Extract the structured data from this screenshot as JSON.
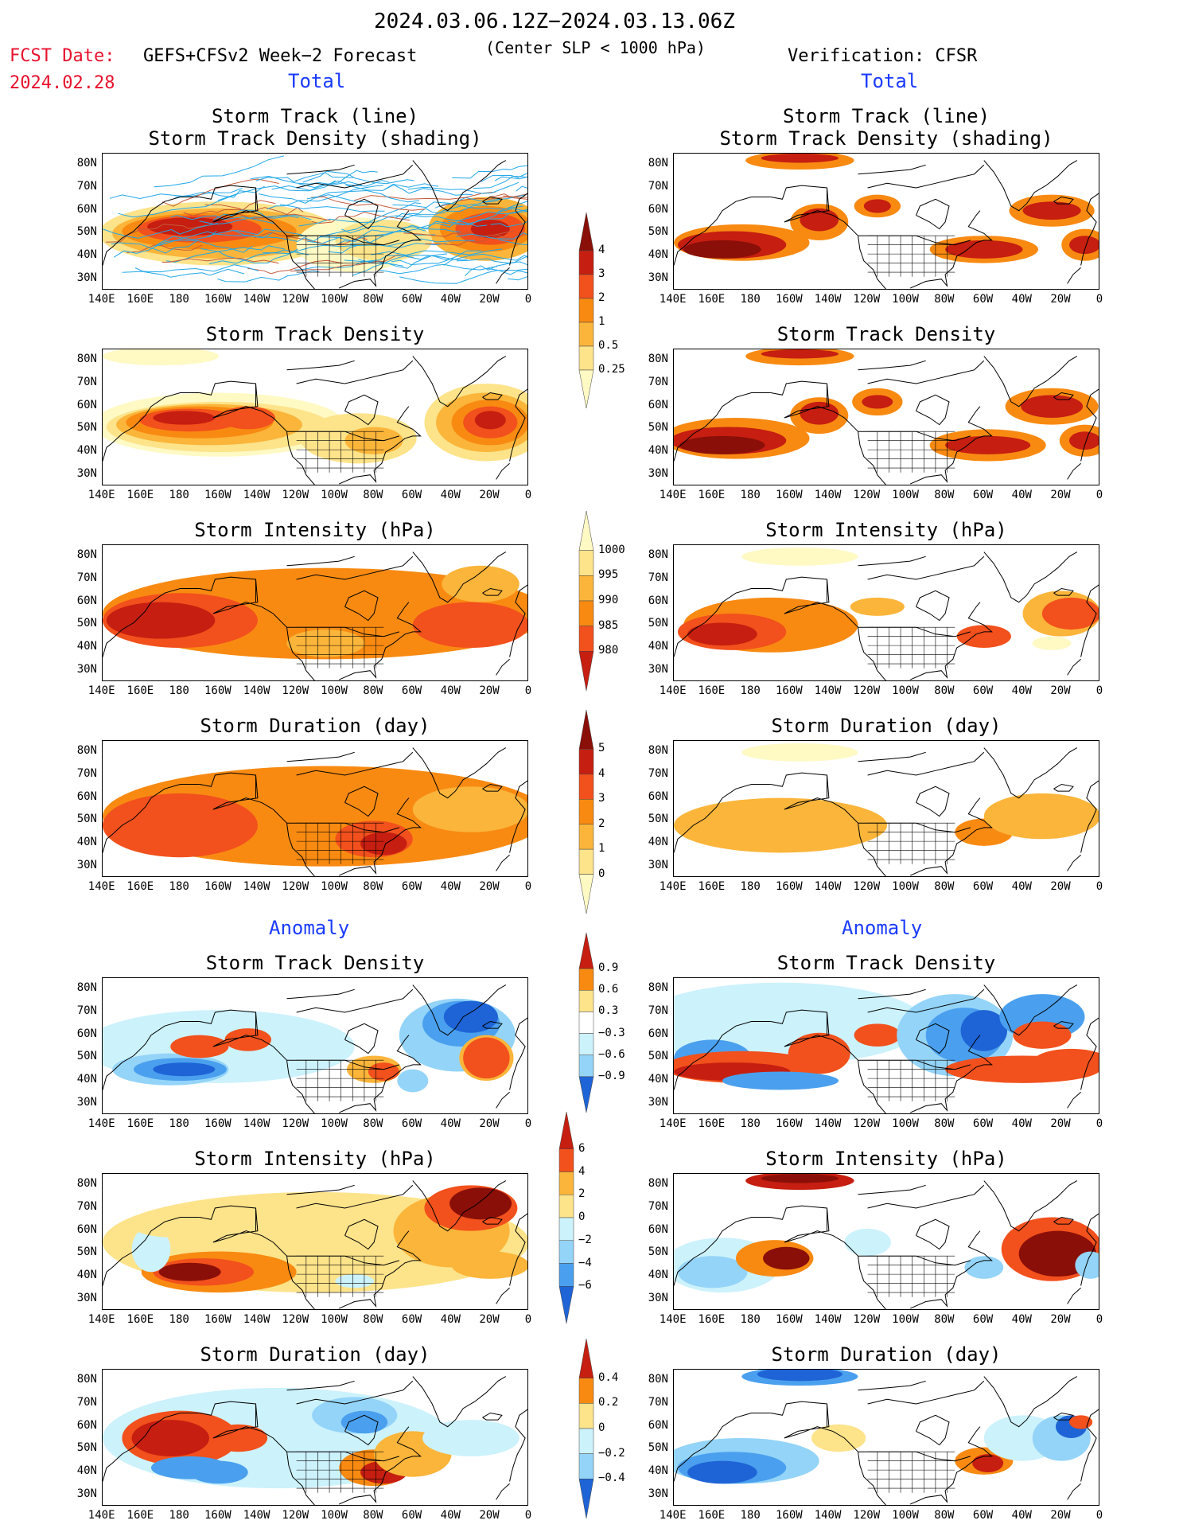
{
  "header": {
    "period": "2024.03.06.12Z−2024.03.13.06Z",
    "fcst_label": "FCST Date:",
    "fcst_date": "2024.02.28",
    "forecast_desc": "GEFS+CFSv2 Week−2 Forecast",
    "criterion": "(Center SLP < 1000 hPa)",
    "verification": "Verification: CFSR",
    "left_section_total": "Total",
    "right_section_total": "Total",
    "left_section_anomaly": "Anomaly",
    "right_section_anomaly": "Anomaly"
  },
  "panel_titles": {
    "track_line": "Storm Track (line)",
    "track_shading": "Storm Track Density (shading)",
    "density": "Storm Track Density",
    "intensity": "Storm Intensity (hPa)",
    "duration": "Storm Duration (day)"
  },
  "lat_ticks": [
    "80N",
    "70N",
    "60N",
    "50N",
    "40N",
    "30N"
  ],
  "lon_ticks": [
    "140E",
    "160E",
    "180",
    "160W",
    "140W",
    "120W",
    "100W",
    "80W",
    "60W",
    "40W",
    "20W",
    "0"
  ],
  "colors": {
    "c1": "#fff9c4",
    "c2": "#fde38a",
    "c3": "#fbb53a",
    "c4": "#f88a12",
    "c5": "#f2501c",
    "c6": "#c61e10",
    "c7": "#8a0f08",
    "n1": "#ccf2fc",
    "n2": "#94d4f8",
    "n3": "#4aa0ee",
    "n4": "#1e64d6",
    "track": "#22a8e8",
    "track_dense": "#c55a3a"
  },
  "chart_data": [
    {
      "type": "heatmap",
      "panel": "forecast-total-track",
      "title": "Storm Track (line)\nStorm Track Density (shading)",
      "colorbar": {
        "levels": [
          0.25,
          0.5,
          1,
          2,
          3,
          4
        ]
      }
    },
    {
      "type": "heatmap",
      "panel": "verification-total-track",
      "title": "Storm Track (line)\nStorm Track Density (shading)"
    },
    {
      "type": "heatmap",
      "panel": "forecast-total-density",
      "title": "Storm Track Density"
    },
    {
      "type": "heatmap",
      "panel": "verification-total-density",
      "title": "Storm Track Density"
    },
    {
      "type": "heatmap",
      "panel": "forecast-total-intensity",
      "title": "Storm Intensity (hPa)",
      "colorbar": {
        "levels": [
          1000,
          995,
          990,
          985,
          980
        ]
      }
    },
    {
      "type": "heatmap",
      "panel": "verification-total-intensity",
      "title": "Storm Intensity (hPa)"
    },
    {
      "type": "heatmap",
      "panel": "forecast-total-duration",
      "title": "Storm Duration (day)",
      "colorbar": {
        "levels": [
          5,
          4,
          3,
          2,
          1,
          0
        ]
      }
    },
    {
      "type": "heatmap",
      "panel": "verification-total-duration",
      "title": "Storm Duration (day)"
    },
    {
      "type": "heatmap",
      "panel": "forecast-anomaly-density",
      "title": "Storm Track Density",
      "colorbar": {
        "levels": [
          0.9,
          0.6,
          0.3,
          -0.3,
          -0.6,
          -0.9
        ]
      }
    },
    {
      "type": "heatmap",
      "panel": "verification-anomaly-density",
      "title": "Storm Track Density"
    },
    {
      "type": "heatmap",
      "panel": "forecast-anomaly-intensity",
      "title": "Storm Intensity (hPa)",
      "colorbar": {
        "levels": [
          6,
          4,
          2,
          0,
          -2,
          -4,
          -6
        ]
      }
    },
    {
      "type": "heatmap",
      "panel": "verification-anomaly-intensity",
      "title": "Storm Intensity (hPa)"
    },
    {
      "type": "heatmap",
      "panel": "forecast-anomaly-duration",
      "title": "Storm Duration (day)",
      "colorbar": {
        "levels": [
          0.4,
          0.2,
          0,
          -0.2,
          -0.4
        ]
      }
    },
    {
      "type": "heatmap",
      "panel": "verification-anomaly-duration",
      "title": "Storm Duration (day)"
    }
  ],
  "colorbars": {
    "density": [
      "4",
      "3",
      "2",
      "1",
      "0.5",
      "0.25"
    ],
    "intensity": [
      "1000",
      "995",
      "990",
      "985",
      "980"
    ],
    "duration": [
      "5",
      "4",
      "3",
      "2",
      "1",
      "0"
    ],
    "anom_density": [
      "0.9",
      "0.6",
      "0.3",
      "−0.3",
      "−0.6",
      "−0.9"
    ],
    "anom_intensity": [
      "6",
      "4",
      "2",
      "0",
      "−2",
      "−4",
      "−6"
    ],
    "anom_duration": [
      "0.4",
      "0.2",
      "0",
      "−0.2",
      "−0.4"
    ]
  }
}
